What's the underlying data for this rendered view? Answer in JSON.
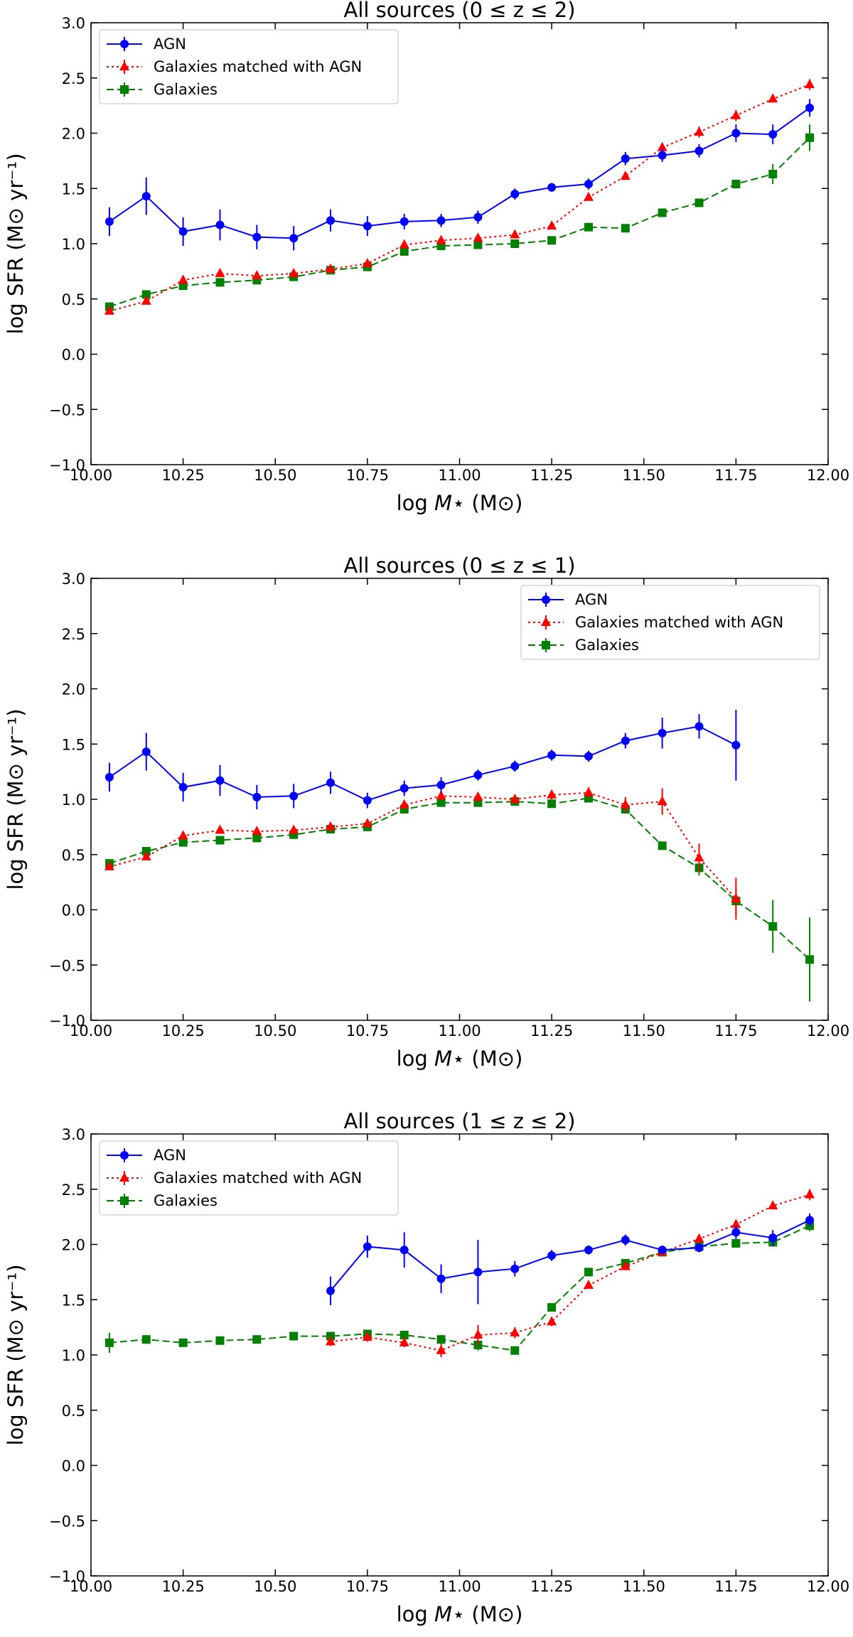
{
  "chart_data": [
    {
      "type": "line",
      "title": "All sources (0 ≤ z ≤ 2)",
      "xlabel": "log M⋆ (M⊙)",
      "ylabel": "log SFR (M⊙ yr⁻¹)",
      "xlim": [
        10.0,
        12.0
      ],
      "ylim": [
        -1.0,
        3.0
      ],
      "xticks": [
        "10.00",
        "10.25",
        "10.50",
        "10.75",
        "11.00",
        "11.25",
        "11.50",
        "11.75",
        "12.00"
      ],
      "yticks": [
        "−1.0",
        "−0.5",
        "0.0",
        "0.5",
        "1.0",
        "1.5",
        "2.0",
        "2.5",
        "3.0"
      ],
      "legend_position": "upper-left",
      "series": [
        {
          "name": "AGN",
          "color": "#0000ff",
          "marker": "circle",
          "linestyle": "solid",
          "x": [
            10.05,
            10.15,
            10.25,
            10.35,
            10.45,
            10.55,
            10.65,
            10.75,
            10.85,
            10.95,
            11.05,
            11.15,
            11.25,
            11.35,
            11.45,
            11.55,
            11.65,
            11.75,
            11.85,
            11.95
          ],
          "y": [
            1.2,
            1.43,
            1.11,
            1.17,
            1.06,
            1.05,
            1.21,
            1.16,
            1.2,
            1.21,
            1.24,
            1.45,
            1.51,
            1.54,
            1.77,
            1.8,
            1.84,
            2.0,
            1.99,
            2.23
          ],
          "err": [
            0.13,
            0.17,
            0.13,
            0.14,
            0.11,
            0.11,
            0.1,
            0.09,
            0.07,
            0.06,
            0.06,
            0.05,
            0.04,
            0.05,
            0.06,
            0.06,
            0.06,
            0.08,
            0.09,
            0.08
          ]
        },
        {
          "name": "Galaxies matched with AGN",
          "color": "#ff0000",
          "marker": "triangle",
          "linestyle": "dotted",
          "x": [
            10.05,
            10.15,
            10.25,
            10.35,
            10.45,
            10.55,
            10.65,
            10.75,
            10.85,
            10.95,
            11.05,
            11.15,
            11.25,
            11.35,
            11.45,
            11.55,
            11.65,
            11.75,
            11.85,
            11.95
          ],
          "y": [
            0.39,
            0.48,
            0.67,
            0.73,
            0.71,
            0.73,
            0.77,
            0.82,
            0.99,
            1.03,
            1.05,
            1.08,
            1.16,
            1.42,
            1.61,
            1.87,
            2.01,
            2.16,
            2.31,
            2.44
          ],
          "err": [
            0.03,
            0.03,
            0.03,
            0.03,
            0.02,
            0.02,
            0.02,
            0.02,
            0.02,
            0.02,
            0.02,
            0.02,
            0.02,
            0.02,
            0.03,
            0.04,
            0.05,
            0.05,
            0.03,
            0.05
          ]
        },
        {
          "name": "Galaxies",
          "color": "#008000",
          "marker": "square",
          "linestyle": "dashed",
          "x": [
            10.05,
            10.15,
            10.25,
            10.35,
            10.45,
            10.55,
            10.65,
            10.75,
            10.85,
            10.95,
            11.05,
            11.15,
            11.25,
            11.35,
            11.45,
            11.55,
            11.65,
            11.75,
            11.85,
            11.95
          ],
          "y": [
            0.43,
            0.54,
            0.62,
            0.65,
            0.67,
            0.7,
            0.76,
            0.79,
            0.93,
            0.98,
            0.99,
            1.0,
            1.03,
            1.15,
            1.14,
            1.28,
            1.37,
            1.54,
            1.63,
            1.96
          ],
          "err": [
            0.02,
            0.02,
            0.02,
            0.02,
            0.02,
            0.02,
            0.02,
            0.02,
            0.02,
            0.02,
            0.02,
            0.02,
            0.02,
            0.02,
            0.02,
            0.02,
            0.02,
            0.04,
            0.09,
            0.12
          ]
        }
      ]
    },
    {
      "type": "line",
      "title": "All sources (0 ≤ z ≤ 1)",
      "xlabel": "log M⋆ (M⊙)",
      "ylabel": "log SFR (M⊙ yr⁻¹)",
      "xlim": [
        10.0,
        12.0
      ],
      "ylim": [
        -1.0,
        3.0
      ],
      "xticks": [
        "10.00",
        "10.25",
        "10.50",
        "10.75",
        "11.00",
        "11.25",
        "11.50",
        "11.75",
        "12.00"
      ],
      "yticks": [
        "−1.0",
        "−0.5",
        "0.0",
        "0.5",
        "1.0",
        "1.5",
        "2.0",
        "2.5",
        "3.0"
      ],
      "legend_position": "upper-right",
      "series": [
        {
          "name": "AGN",
          "color": "#0000ff",
          "marker": "circle",
          "linestyle": "solid",
          "x": [
            10.05,
            10.15,
            10.25,
            10.35,
            10.45,
            10.55,
            10.65,
            10.75,
            10.85,
            10.95,
            11.05,
            11.15,
            11.25,
            11.35,
            11.45,
            11.55,
            11.65,
            11.75
          ],
          "y": [
            1.2,
            1.43,
            1.11,
            1.17,
            1.02,
            1.03,
            1.15,
            0.99,
            1.1,
            1.13,
            1.22,
            1.3,
            1.4,
            1.39,
            1.53,
            1.6,
            1.66,
            1.49
          ],
          "err": [
            0.13,
            0.17,
            0.13,
            0.14,
            0.11,
            0.11,
            0.1,
            0.07,
            0.07,
            0.07,
            0.05,
            0.05,
            0.05,
            0.05,
            0.07,
            0.14,
            0.11,
            0.32
          ]
        },
        {
          "name": "Galaxies matched with AGN",
          "color": "#ff0000",
          "marker": "triangle",
          "linestyle": "dotted",
          "x": [
            10.05,
            10.15,
            10.25,
            10.35,
            10.45,
            10.55,
            10.65,
            10.75,
            10.85,
            10.95,
            11.05,
            11.15,
            11.25,
            11.35,
            11.45,
            11.55,
            11.65,
            11.75
          ],
          "y": [
            0.39,
            0.48,
            0.67,
            0.72,
            0.71,
            0.72,
            0.75,
            0.78,
            0.95,
            1.03,
            1.02,
            1.0,
            1.04,
            1.06,
            0.95,
            0.98,
            0.47,
            0.1
          ],
          "err": [
            0.03,
            0.03,
            0.03,
            0.03,
            0.02,
            0.02,
            0.02,
            0.02,
            0.02,
            0.03,
            0.04,
            0.04,
            0.04,
            0.05,
            0.07,
            0.12,
            0.13,
            0.19
          ]
        },
        {
          "name": "Galaxies",
          "color": "#008000",
          "marker": "square",
          "linestyle": "dashed",
          "x": [
            10.05,
            10.15,
            10.25,
            10.35,
            10.45,
            10.55,
            10.65,
            10.75,
            10.85,
            10.95,
            11.05,
            11.15,
            11.25,
            11.35,
            11.45,
            11.55,
            11.65,
            11.75,
            11.85,
            11.95
          ],
          "y": [
            0.42,
            0.53,
            0.61,
            0.63,
            0.65,
            0.68,
            0.73,
            0.75,
            0.91,
            0.97,
            0.97,
            0.98,
            0.96,
            1.01,
            0.91,
            0.58,
            0.38,
            0.08,
            -0.15,
            -0.45
          ],
          "err": [
            0.02,
            0.02,
            0.02,
            0.02,
            0.02,
            0.02,
            0.02,
            0.02,
            0.02,
            0.02,
            0.02,
            0.02,
            0.02,
            0.03,
            0.03,
            0.03,
            0.07,
            0.12,
            0.24,
            0.38
          ]
        }
      ]
    },
    {
      "type": "line",
      "title": "All sources (1 ≤ z ≤ 2)",
      "xlabel": "log M⋆ (M⊙)",
      "ylabel": "log SFR (M⊙ yr⁻¹)",
      "xlim": [
        10.0,
        12.0
      ],
      "ylim": [
        -1.0,
        3.0
      ],
      "xticks": [
        "10.00",
        "10.25",
        "10.50",
        "10.75",
        "11.00",
        "11.25",
        "11.50",
        "11.75",
        "12.00"
      ],
      "yticks": [
        "−1.0",
        "−0.5",
        "0.0",
        "0.5",
        "1.0",
        "1.5",
        "2.0",
        "2.5",
        "3.0"
      ],
      "legend_position": "upper-left",
      "series": [
        {
          "name": "AGN",
          "color": "#0000ff",
          "marker": "circle",
          "linestyle": "solid",
          "x": [
            10.65,
            10.75,
            10.85,
            10.95,
            11.05,
            11.15,
            11.25,
            11.35,
            11.45,
            11.55,
            11.65,
            11.75,
            11.85,
            11.95
          ],
          "y": [
            1.58,
            1.98,
            1.95,
            1.69,
            1.75,
            1.78,
            1.9,
            1.95,
            2.04,
            1.95,
            1.97,
            2.11,
            2.06,
            2.22
          ],
          "err": [
            0.13,
            0.1,
            0.16,
            0.13,
            0.29,
            0.07,
            0.05,
            0.04,
            0.05,
            0.04,
            0.04,
            0.06,
            0.07,
            0.06
          ]
        },
        {
          "name": "Galaxies matched with AGN",
          "color": "#ff0000",
          "marker": "triangle",
          "linestyle": "dotted",
          "x": [
            10.65,
            10.75,
            10.85,
            10.95,
            11.05,
            11.15,
            11.25,
            11.35,
            11.45,
            11.55,
            11.65,
            11.75,
            11.85,
            11.95
          ],
          "y": [
            1.12,
            1.16,
            1.11,
            1.04,
            1.18,
            1.2,
            1.3,
            1.63,
            1.8,
            1.93,
            2.05,
            2.18,
            2.35,
            2.45
          ],
          "err": [
            0.04,
            0.04,
            0.04,
            0.06,
            0.09,
            0.05,
            0.04,
            0.03,
            0.03,
            0.03,
            0.03,
            0.03,
            0.03,
            0.05
          ]
        },
        {
          "name": "Galaxies",
          "color": "#008000",
          "marker": "square",
          "linestyle": "dashed",
          "x": [
            10.05,
            10.15,
            10.25,
            10.35,
            10.45,
            10.55,
            10.65,
            10.75,
            10.85,
            10.95,
            11.05,
            11.15,
            11.25,
            11.35,
            11.45,
            11.55,
            11.65,
            11.75,
            11.85,
            11.95
          ],
          "y": [
            1.11,
            1.14,
            1.11,
            1.13,
            1.14,
            1.17,
            1.17,
            1.19,
            1.18,
            1.14,
            1.09,
            1.04,
            1.43,
            1.75,
            1.83,
            1.93,
            1.98,
            2.01,
            2.02,
            2.17
          ],
          "err": [
            0.09,
            0.04,
            0.02,
            0.02,
            0.02,
            0.02,
            0.03,
            0.03,
            0.03,
            0.04,
            0.05,
            0.03,
            0.03,
            0.02,
            0.02,
            0.02,
            0.02,
            0.03,
            0.04,
            0.05
          ]
        }
      ]
    }
  ]
}
